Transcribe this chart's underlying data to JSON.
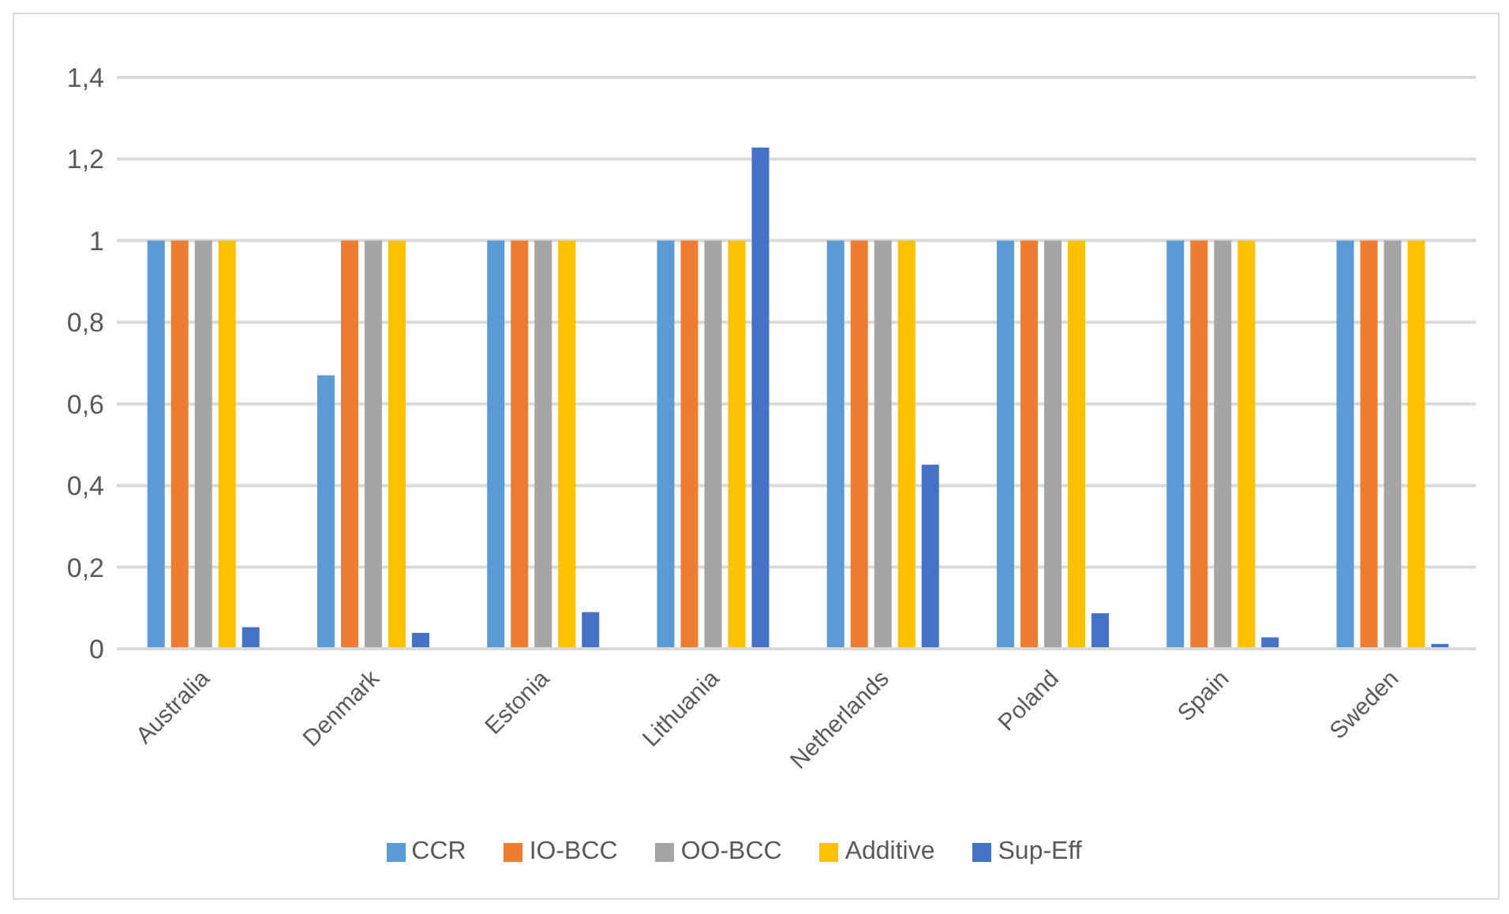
{
  "chart_data": {
    "type": "bar",
    "categories": [
      "Australia",
      "Denmark",
      "Estonia",
      "Lithuania",
      "Netherlands",
      "Poland",
      "Spain",
      "Sweden"
    ],
    "series": [
      {
        "name": "CCR",
        "color": "#5b9bd5",
        "values": [
          1,
          0.67,
          1,
          1,
          1,
          1,
          1,
          1
        ]
      },
      {
        "name": "IO-BCC",
        "color": "#ed7d31",
        "values": [
          1,
          1,
          1,
          1,
          1,
          1,
          1,
          1
        ]
      },
      {
        "name": "OO-BCC",
        "color": "#a5a5a5",
        "values": [
          1,
          1,
          1,
          1,
          1,
          1,
          1,
          1
        ]
      },
      {
        "name": "Additive",
        "color": "#ffc000",
        "values": [
          1,
          1,
          1,
          1,
          1,
          1,
          1,
          1
        ]
      },
      {
        "name": "Sup-Eff",
        "color": "#4472c4",
        "values": [
          0.053,
          0.039,
          0.09,
          1.228,
          0.451,
          0.087,
          0.028,
          0.012
        ]
      }
    ],
    "ylim": [
      0,
      1.4
    ],
    "yticks": [
      {
        "value": 0,
        "label": "0"
      },
      {
        "value": 0.2,
        "label": "0,2"
      },
      {
        "value": 0.4,
        "label": "0,4"
      },
      {
        "value": 0.6,
        "label": "0,6"
      },
      {
        "value": 0.8,
        "label": "0,8"
      },
      {
        "value": 1,
        "label": "1"
      },
      {
        "value": 1.2,
        "label": "1,2"
      },
      {
        "value": 1.4,
        "label": "1,4"
      }
    ],
    "grid": "y",
    "legend": "bottom"
  }
}
